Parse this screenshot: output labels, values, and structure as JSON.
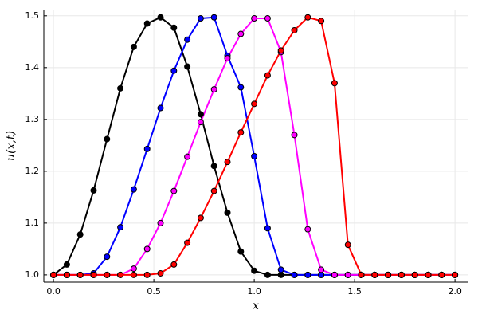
{
  "chart_data": {
    "type": "line",
    "xlabel": "x",
    "ylabel": "u(x,t)",
    "x": [
      0,
      0.0667,
      0.1333,
      0.2,
      0.2667,
      0.3333,
      0.4,
      0.4667,
      0.5333,
      0.6,
      0.6667,
      0.7333,
      0.8,
      0.8667,
      0.9333,
      1,
      1.0667,
      1.1333,
      1.2,
      1.2667,
      1.3333,
      1.4,
      1.4667,
      1.5333,
      1.6,
      1.6667,
      1.7333,
      1.8,
      1.8667,
      1.9333,
      2
    ],
    "series": [
      {
        "color": "#000000",
        "values": [
          1,
          1.02,
          1.078,
          1.163,
          1.262,
          1.36,
          1.44,
          1.485,
          1.497,
          1.477,
          1.402,
          1.31,
          1.21,
          1.12,
          1.045,
          1.008,
          1,
          1,
          1,
          1,
          1,
          1,
          1,
          1,
          1,
          1,
          1,
          1,
          1,
          1,
          1
        ]
      },
      {
        "color": "#0000ff",
        "values": [
          1,
          1,
          1,
          1.003,
          1.035,
          1.092,
          1.165,
          1.243,
          1.322,
          1.394,
          1.454,
          1.495,
          1.497,
          1.423,
          1.362,
          1.229,
          1.09,
          1.01,
          1,
          1,
          1,
          1,
          1,
          1,
          1,
          1,
          1,
          1,
          1,
          1,
          1
        ]
      },
      {
        "color": "#ff00ff",
        "values": [
          1,
          1,
          1,
          1,
          1,
          1,
          1.012,
          1.05,
          1.1,
          1.162,
          1.228,
          1.295,
          1.358,
          1.418,
          1.465,
          1.495,
          1.495,
          1.43,
          1.27,
          1.088,
          1.01,
          1,
          1,
          1,
          1,
          1,
          1,
          1,
          1,
          1,
          1
        ]
      },
      {
        "color": "#ff0000",
        "values": [
          1,
          1,
          1,
          1,
          1,
          1,
          1,
          1,
          1.003,
          1.02,
          1.062,
          1.11,
          1.162,
          1.218,
          1.275,
          1.33,
          1.385,
          1.433,
          1.472,
          1.497,
          1.49,
          1.37,
          1.058,
          1,
          1,
          1,
          1,
          1,
          1,
          1,
          1
        ]
      }
    ],
    "xlim": [
      -0.048,
      2.067
    ],
    "ylim": [
      0.986,
      1.512
    ],
    "xticks": [
      {
        "value": 0,
        "label": "0.0"
      },
      0.5,
      {
        "value": 1,
        "label": "1.0"
      },
      1.5,
      {
        "value": 2,
        "label": "2.0"
      }
    ],
    "yticks": [
      {
        "value": 1,
        "label": "1.0"
      },
      1.1,
      1.2,
      1.3,
      1.4,
      1.5
    ],
    "grid": true,
    "markers": true
  }
}
